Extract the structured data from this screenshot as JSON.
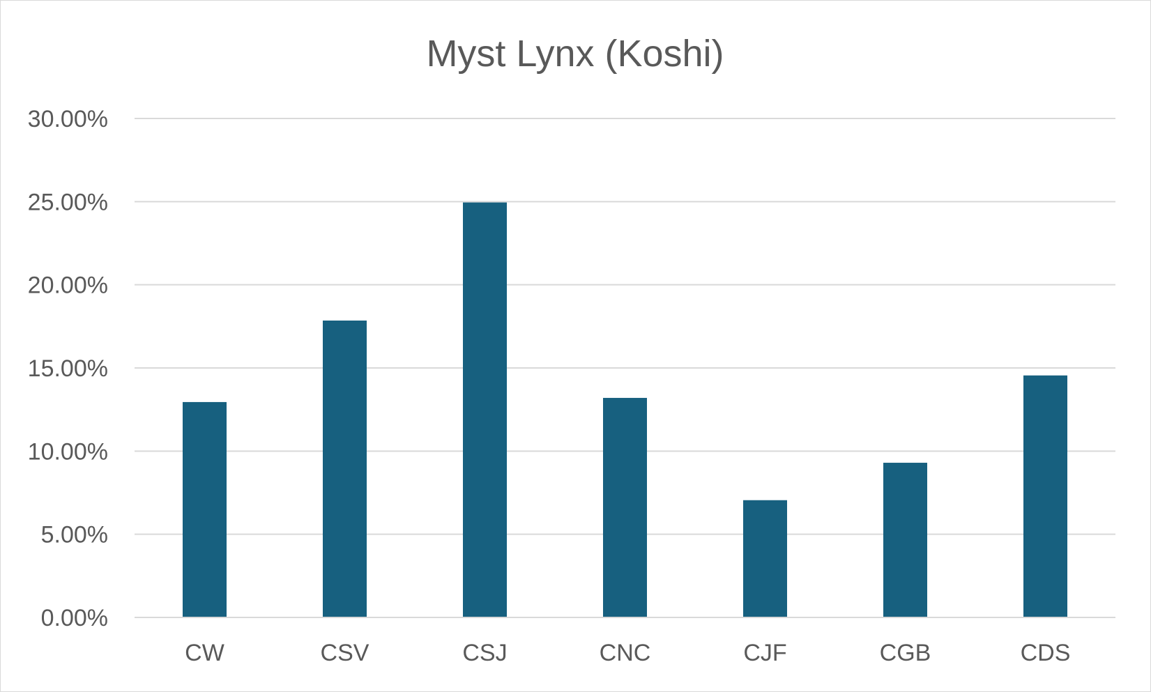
{
  "chart_data": {
    "type": "bar",
    "title": "Myst Lynx (Koshi)",
    "categories": [
      "CW",
      "CSV",
      "CSJ",
      "CNC",
      "CJF",
      "CGB",
      "CDS"
    ],
    "values": [
      12.95,
      17.85,
      24.95,
      13.2,
      7.05,
      9.3,
      14.55
    ],
    "value_format": "percent",
    "ylim": [
      0,
      30
    ],
    "yticks": [
      0,
      5,
      10,
      15,
      20,
      25,
      30
    ],
    "ytick_labels": [
      "0.00%",
      "5.00%",
      "10.00%",
      "15.00%",
      "20.00%",
      "25.00%",
      "30.00%"
    ],
    "xlabel": "",
    "ylabel": "",
    "grid": true,
    "legend": "none",
    "bar_color": "#17607f",
    "grid_color": "#d9d9d9",
    "text_color": "#595959"
  }
}
